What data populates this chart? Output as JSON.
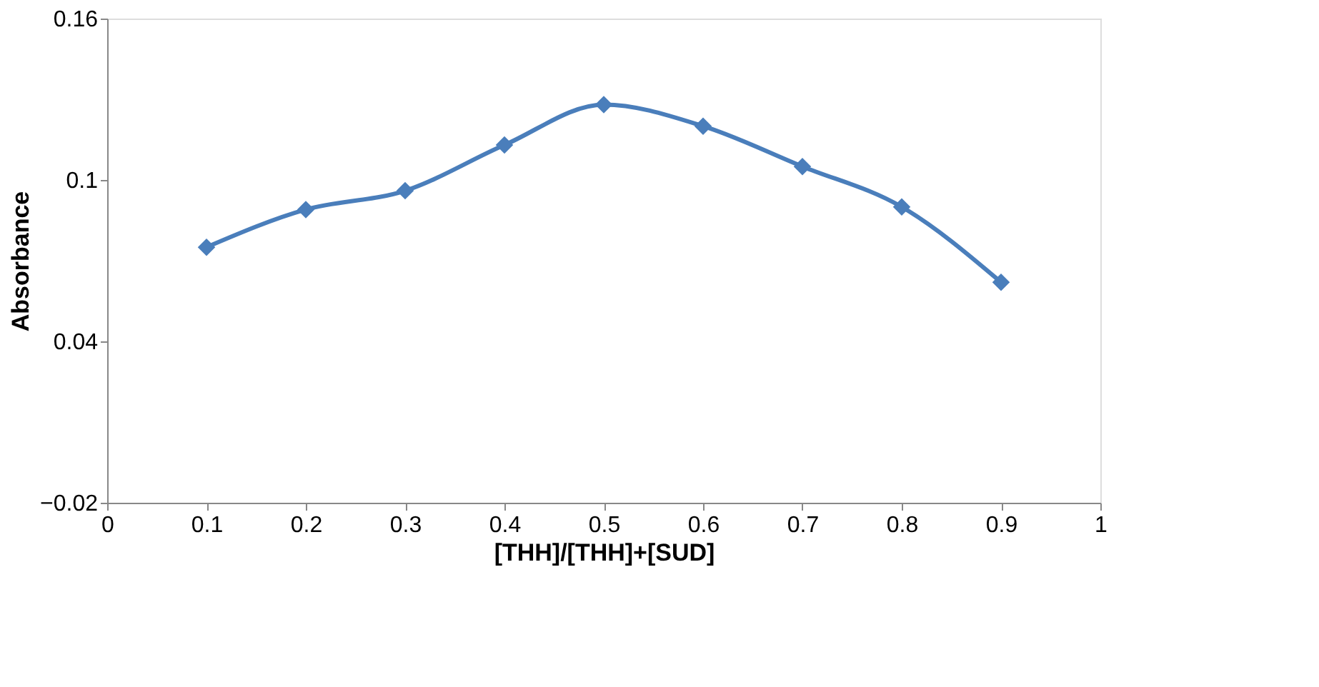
{
  "chart_data": {
    "type": "line",
    "xlabel": "[THH]/[THH]+[SUD]",
    "ylabel": "Absorbance",
    "x": [
      0.1,
      0.2,
      0.3,
      0.4,
      0.5,
      0.6,
      0.7,
      0.8,
      0.9
    ],
    "series": [
      {
        "color": "#4a7ebb",
        "values": [
          0.075,
          0.089,
          0.096,
          0.113,
          0.128,
          0.12,
          0.105,
          0.09,
          0.062
        ]
      }
    ],
    "xlim": [
      0,
      1
    ],
    "xticks": [
      0,
      0.1,
      0.2,
      0.3,
      0.4,
      0.5,
      0.6,
      0.7,
      0.8,
      0.9,
      1
    ],
    "ylim": [
      -0.02,
      0.16
    ],
    "yticks": [
      -0.02,
      0.04,
      0.1,
      0.16
    ],
    "grid": false,
    "marker": "diamond",
    "line_style": "solid"
  }
}
